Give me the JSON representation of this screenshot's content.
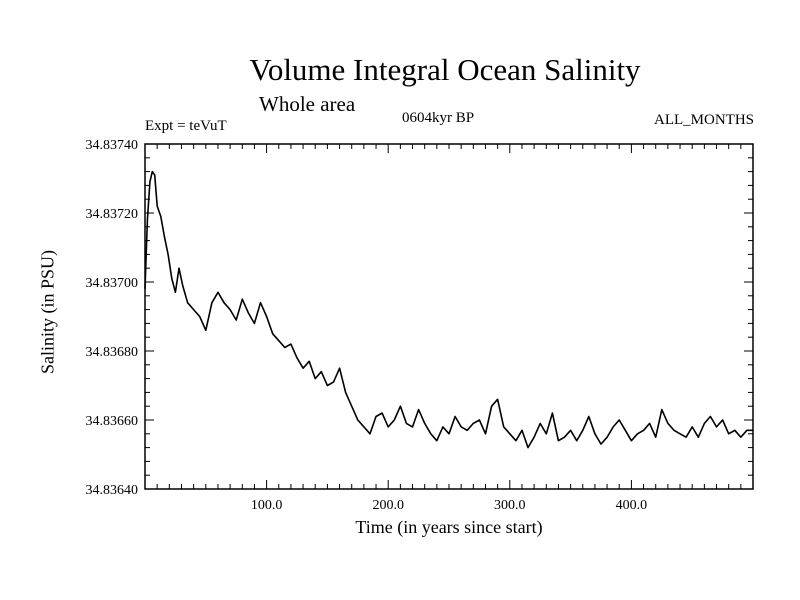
{
  "header": {
    "title": "Volume Integral Ocean Salinity",
    "subtitle": "Whole area",
    "experiment": "Expt = teVuT",
    "period": "0604kyr BP",
    "months": "ALL_MONTHS"
  },
  "chart_data": {
    "type": "line",
    "title": "Volume Integral Ocean Salinity",
    "subtitle": "Whole area",
    "xlabel": "Time (in years since start)",
    "ylabel": "Salinity (in PSU)",
    "xlim": [
      0,
      500
    ],
    "ylim": [
      34.8364,
      34.8374
    ],
    "x_ticks": [
      "100.0",
      "200.0",
      "300.0",
      "400.0"
    ],
    "y_ticks": [
      "34.83640",
      "34.83660",
      "34.83680",
      "34.83700",
      "34.83720",
      "34.83740"
    ],
    "grid": false,
    "series": [
      {
        "x": [
          0,
          2,
          4,
          6,
          8,
          10,
          13,
          16,
          19,
          22,
          25,
          28,
          31,
          35,
          40,
          45,
          50,
          55,
          60,
          65,
          70,
          75,
          80,
          85,
          90,
          95,
          100,
          105,
          110,
          115,
          120,
          125,
          130,
          135,
          140,
          145,
          150,
          155,
          160,
          165,
          170,
          175,
          180,
          185,
          190,
          195,
          200,
          205,
          210,
          215,
          220,
          225,
          230,
          235,
          240,
          245,
          250,
          255,
          260,
          265,
          270,
          275,
          280,
          285,
          290,
          295,
          300,
          305,
          310,
          315,
          320,
          325,
          330,
          335,
          340,
          345,
          350,
          355,
          360,
          365,
          370,
          375,
          380,
          385,
          390,
          395,
          400,
          405,
          410,
          415,
          420,
          425,
          430,
          435,
          440,
          445,
          450,
          455,
          460,
          465,
          470,
          475,
          480,
          485,
          490,
          495,
          500
        ],
        "values": [
          34.83698,
          34.83718,
          34.83729,
          34.83732,
          34.83731,
          34.83722,
          34.83719,
          34.83713,
          34.83708,
          34.83701,
          34.83697,
          34.83704,
          34.83699,
          34.83694,
          34.83692,
          34.8369,
          34.83686,
          34.83694,
          34.83697,
          34.83694,
          34.83692,
          34.83689,
          34.83695,
          34.83691,
          34.83688,
          34.83694,
          34.8369,
          34.83685,
          34.83683,
          34.83681,
          34.83682,
          34.83678,
          34.83675,
          34.83677,
          34.83672,
          34.83674,
          34.8367,
          34.83671,
          34.83675,
          34.83668,
          34.83664,
          34.8366,
          34.83658,
          34.83656,
          34.83661,
          34.83662,
          34.83658,
          34.8366,
          34.83664,
          34.83659,
          34.83658,
          34.83663,
          34.83659,
          34.83656,
          34.83654,
          34.83658,
          34.83656,
          34.83661,
          34.83658,
          34.83657,
          34.83659,
          34.8366,
          34.83656,
          34.83664,
          34.83666,
          34.83658,
          34.83656,
          34.83654,
          34.83657,
          34.83652,
          34.83655,
          34.83659,
          34.83656,
          34.83662,
          34.83654,
          34.83655,
          34.83657,
          34.83654,
          34.83657,
          34.83661,
          34.83656,
          34.83653,
          34.83655,
          34.83658,
          34.8366,
          34.83657,
          34.83654,
          34.83656,
          34.83657,
          34.83659,
          34.83655,
          34.83663,
          34.83659,
          34.83657,
          34.83656,
          34.83655,
          34.83658,
          34.83655,
          34.83659,
          34.83661,
          34.83658,
          34.8366,
          34.83656,
          34.83657,
          34.83655,
          34.83657,
          34.83657
        ]
      }
    ]
  }
}
